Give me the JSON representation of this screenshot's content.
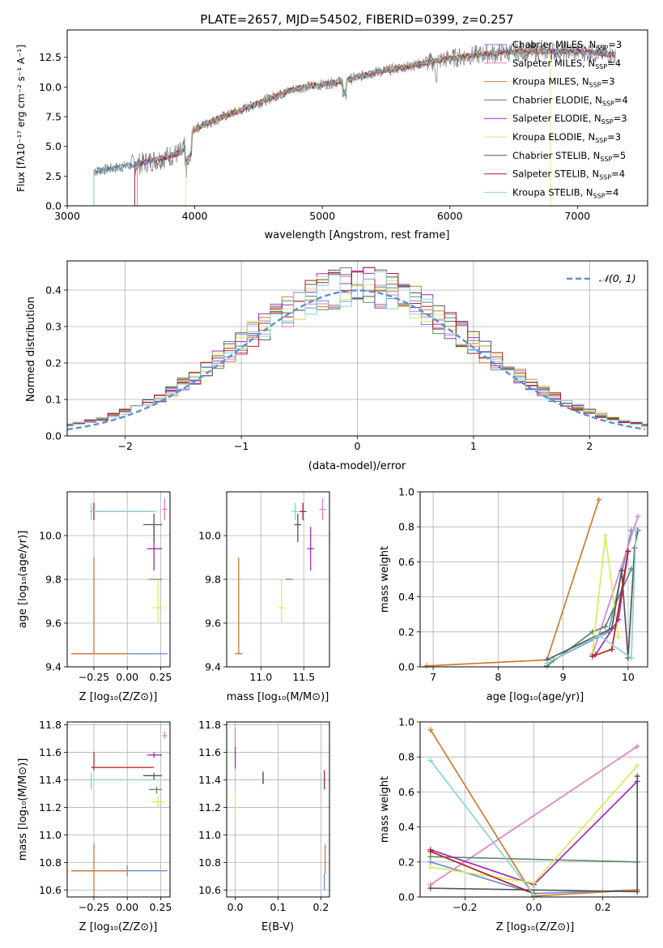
{
  "palette": [
    "#6a8fd8",
    "#e37fc3",
    "#d17b2f",
    "#5e8a67",
    "#9b2fb7",
    "#d8ec5b",
    "#555555",
    "#b81f1f",
    "#87d3d6"
  ],
  "chart_data": [
    {
      "id": "spectrum",
      "type": "line",
      "title": "PLATE=2657, MJD=54502, FIBERID=0399, z=0.257",
      "xlabel": "wavelength [Angstrom, rest frame]",
      "ylabel": "Flux [fλ10⁻¹⁷ erg cm⁻² s⁻¹ A⁻¹]",
      "xlim": [
        3000,
        7550
      ],
      "ylim": [
        0,
        14.8
      ],
      "xticks": [
        "3000",
        "4000",
        "5000",
        "6000",
        "7000"
      ],
      "yticks": [
        "0.0",
        "2.5",
        "5.0",
        "7.5",
        "10.0",
        "12.5"
      ],
      "legend": "right",
      "series": [
        {
          "name": "Chabrier MILES, N",
          "sub": "SSP",
          "suffix": "=3"
        },
        {
          "name": "Salpeter MILES, N",
          "sub": "SSP",
          "suffix": "=4"
        },
        {
          "name": "Kroupa MILES, N",
          "sub": "SSP",
          "suffix": "=3"
        },
        {
          "name": "Chabrier ELODIE, N",
          "sub": "SSP",
          "suffix": "=4"
        },
        {
          "name": "Salpeter ELODIE, N",
          "sub": "SSP",
          "suffix": "=3"
        },
        {
          "name": "Kroupa ELODIE, N",
          "sub": "SSP",
          "suffix": "=3"
        },
        {
          "name": "Chabrier STELIB, N",
          "sub": "SSP",
          "suffix": "=5"
        },
        {
          "name": "Salpeter STELIB, N",
          "sub": "SSP",
          "suffix": "=4"
        },
        {
          "name": "Kroupa STELIB, N",
          "sub": "SSP",
          "suffix": "=4"
        }
      ],
      "continuum": [
        [
          3210,
          2.9
        ],
        [
          3500,
          3.4
        ],
        [
          3700,
          3.9
        ],
        [
          3900,
          4.5
        ],
        [
          4000,
          6.5
        ],
        [
          4200,
          7.4
        ],
        [
          4400,
          8.2
        ],
        [
          4600,
          9.1
        ],
        [
          4800,
          9.9
        ],
        [
          5000,
          10.2
        ],
        [
          5200,
          10.6
        ],
        [
          5400,
          11.2
        ],
        [
          5600,
          11.6
        ],
        [
          5800,
          12.0
        ],
        [
          6000,
          12.4
        ],
        [
          6200,
          12.7
        ],
        [
          6400,
          12.9
        ],
        [
          6600,
          13.0
        ],
        [
          6800,
          13.0
        ],
        [
          7000,
          13.0
        ],
        [
          7200,
          12.8
        ],
        [
          7300,
          12.7
        ]
      ],
      "range_starts": [
        3210,
        3530,
        3530,
        3550,
        3530,
        3930,
        3210,
        3530,
        3210
      ]
    },
    {
      "id": "residuals",
      "type": "histogram",
      "xlabel": "(data-model)/error",
      "ylabel": "Normed distribution",
      "xlim": [
        -2.5,
        2.5
      ],
      "ylim": [
        0,
        0.48
      ],
      "xticks": [
        "−2",
        "−1",
        "0",
        "1",
        "2"
      ],
      "yticks": [
        "0.0",
        "0.1",
        "0.2",
        "0.3",
        "0.4"
      ],
      "legend_label": "𝒩(0, 1)"
    },
    {
      "id": "z-age",
      "type": "scatter",
      "xlabel": "Z [log₁₀(Z/Z⊙)]",
      "ylabel": "age  [log₁₀(age/yr)]",
      "xlim": [
        -0.45,
        0.32
      ],
      "ylim": [
        9.4,
        10.2
      ],
      "xticks": [
        "−0.25",
        "0.00",
        "0.25"
      ],
      "yticks": [
        "9.4",
        "9.6",
        "9.8",
        "10.0"
      ]
    },
    {
      "id": "mass-age",
      "type": "scatter",
      "xlabel": "mass [log₁₀(M/M⊙)]",
      "xlim": [
        10.6,
        11.8
      ],
      "ylim": [
        9.4,
        10.2
      ],
      "xticks": [
        "11.0",
        "11.5"
      ],
      "yticks": [
        "9.4",
        "9.6",
        "9.8",
        "10.0"
      ]
    },
    {
      "id": "age-weight",
      "type": "line",
      "xlabel": "age  [log₁₀(age/yr)]",
      "ylabel": "mass weight",
      "xlim": [
        6.8,
        10.3
      ],
      "ylim": [
        0,
        1.0
      ],
      "xticks": [
        "7",
        "8",
        "9",
        "10"
      ],
      "yticks": [
        "0.0",
        "0.2",
        "0.4",
        "0.6",
        "0.8",
        "1.0"
      ]
    },
    {
      "id": "z-mass",
      "type": "scatter",
      "xlabel": "Z [log₁₀(Z/Z⊙)]",
      "ylabel": "mass [log₁₀(M/M⊙)]",
      "xlim": [
        -0.45,
        0.32
      ],
      "ylim": [
        10.55,
        11.82
      ],
      "xticks": [
        "−0.25",
        "0.00",
        "0.25"
      ],
      "yticks": [
        "10.6",
        "10.8",
        "11.0",
        "11.2",
        "11.4",
        "11.6",
        "11.8"
      ]
    },
    {
      "id": "ebv-mass",
      "type": "scatter",
      "xlabel": "E(B-V)",
      "xlim": [
        -0.02,
        0.22
      ],
      "ylim": [
        10.55,
        11.82
      ],
      "xticks": [
        "0.0",
        "0.1",
        "0.2"
      ],
      "yticks": [
        "10.6",
        "10.8",
        "11.0",
        "11.2",
        "11.4",
        "11.6",
        "11.8"
      ]
    },
    {
      "id": "z-weight",
      "type": "line",
      "xlabel": "Z [log₁₀(Z/Z⊙)]",
      "ylabel": "mass weight",
      "xlim": [
        -0.33,
        0.33
      ],
      "ylim": [
        0,
        1.0
      ],
      "xticks": [
        "−0.2",
        "0.0",
        "0.2"
      ],
      "yticks": [
        "0.0",
        "0.2",
        "0.4",
        "0.6",
        "0.8",
        "1.0"
      ]
    }
  ],
  "fits": [
    {
      "Z": 0.0,
      "Zlo": -0.42,
      "Zhi": 0.3,
      "age": 9.46,
      "alo": 9.46,
      "ahi": 9.46,
      "mass": 10.74,
      "mlo": 10.7,
      "mhi": 10.78,
      "ebv": 0.208,
      "elo": 10.6,
      "ehi": 10.72
    },
    {
      "Z": 0.28,
      "Zlo": 0.26,
      "Zhi": 0.3,
      "age": 10.12,
      "alo": 10.07,
      "ahi": 10.17,
      "mass": 11.72,
      "mlo": 11.7,
      "mhi": 11.75,
      "ebv": 0.0,
      "elo": 11.62,
      "ehi": 11.78
    },
    {
      "Z": -0.25,
      "Zlo": -0.42,
      "Zhi": 0.0,
      "age": 9.46,
      "alo": 9.46,
      "ahi": 9.9,
      "mass": 10.74,
      "mlo": 10.55,
      "mhi": 10.94,
      "ebv": 0.21,
      "elo": 10.72,
      "ehi": 10.93
    },
    {
      "Z": 0.22,
      "Zlo": 0.16,
      "Zhi": 0.26,
      "age": 9.8,
      "alo": 9.8,
      "ahi": 9.8,
      "mass": 11.33,
      "mlo": 11.3,
      "mhi": 11.35,
      "ebv": 0.065,
      "elo": 11.37,
      "ehi": 11.45
    },
    {
      "Z": 0.2,
      "Zlo": 0.15,
      "Zhi": 0.26,
      "age": 9.94,
      "alo": 9.84,
      "ahi": 10.04,
      "mass": 11.58,
      "mlo": 11.56,
      "mhi": 11.6,
      "ebv": 0.0,
      "elo": 11.48,
      "ehi": 11.64
    },
    {
      "Z": 0.23,
      "Zlo": 0.18,
      "Zhi": 0.28,
      "age": 9.67,
      "alo": 9.6,
      "ahi": 9.8,
      "mass": 11.24,
      "mlo": 11.2,
      "mhi": 11.28,
      "ebv": 0.0,
      "elo": 11.16,
      "ehi": 11.32
    },
    {
      "Z": 0.2,
      "Zlo": 0.12,
      "Zhi": 0.26,
      "age": 10.05,
      "alo": 9.97,
      "ahi": 10.1,
      "mass": 11.43,
      "mlo": 11.4,
      "mhi": 11.45,
      "ebv": 0.065,
      "elo": 11.37,
      "ehi": 11.46
    },
    {
      "Z": -0.25,
      "Zlo": -0.27,
      "Zhi": 0.2,
      "age": 10.11,
      "alo": 10.07,
      "ahi": 10.15,
      "mass": 11.49,
      "mlo": 11.47,
      "mhi": 11.6,
      "ebv": 0.208,
      "elo": 11.33,
      "ehi": 11.47
    },
    {
      "Z": -0.27,
      "Zlo": -0.28,
      "Zhi": 0.22,
      "age": 10.11,
      "alo": 10.07,
      "ahi": 10.15,
      "mass": 11.4,
      "mlo": 11.33,
      "mhi": 11.45,
      "ebv": 0.2,
      "elo": 11.33,
      "ehi": 11.45
    }
  ],
  "weights": [
    {
      "age": [
        8.85,
        9.7,
        10.05
      ],
      "w": [
        0.04,
        0.2,
        0.78
      ],
      "Z": [
        -0.3,
        0.0,
        0.3
      ],
      "wz": [
        0.2,
        0.02,
        0.04
      ]
    },
    {
      "age": [
        9.45,
        10.15
      ],
      "w": [
        0.07,
        0.86
      ],
      "Z": [
        -0.3,
        0.3
      ],
      "wz": [
        0.07,
        0.86
      ]
    },
    {
      "age": [
        6.9,
        8.75,
        9.55
      ],
      "w": [
        0.005,
        0.04,
        0.955
      ],
      "Z": [
        -0.3,
        0.0,
        0.3
      ],
      "wz": [
        0.955,
        0.005,
        0.04
      ]
    },
    {
      "age": [
        8.75,
        9.45,
        9.65,
        10.05
      ],
      "w": [
        0.005,
        0.2,
        0.23,
        0.56
      ],
      "Z": [
        -0.3,
        0.3
      ],
      "wz": [
        0.23,
        0.2
      ]
    },
    {
      "age": [
        9.5,
        9.85,
        10.0
      ],
      "w": [
        0.07,
        0.27,
        0.66
      ],
      "Z": [
        -0.3,
        0.0,
        0.3
      ],
      "wz": [
        0.27,
        0.07,
        0.66
      ]
    },
    {
      "age": [
        9.45,
        9.65,
        9.85
      ],
      "w": [
        0.08,
        0.75,
        0.17
      ],
      "Z": [
        -0.3,
        0.0,
        0.3
      ],
      "wz": [
        0.17,
        0.08,
        0.75
      ]
    },
    {
      "age": [
        8.75,
        9.75,
        9.9,
        10.0,
        10.1,
        10.15
      ],
      "w": [
        0.04,
        0.22,
        0.55,
        0.05,
        0.68,
        0.78
      ],
      "Z": [
        -0.3,
        0.3,
        0.3
      ],
      "wz": [
        0.05,
        0.03,
        0.69
      ]
    },
    {
      "age": [
        9.45,
        9.75,
        10.0
      ],
      "w": [
        0.06,
        0.1,
        0.66
      ],
      "Z": [
        -0.3,
        0.0
      ],
      "wz": [
        0.26,
        0.02
      ]
    },
    {
      "age": [
        8.75,
        9.55,
        10.05,
        10.12
      ],
      "w": [
        0.02,
        0.18,
        0.05,
        0.78
      ],
      "Z": [
        -0.3,
        0.0
      ],
      "wz": [
        0.78,
        0.01
      ]
    }
  ]
}
